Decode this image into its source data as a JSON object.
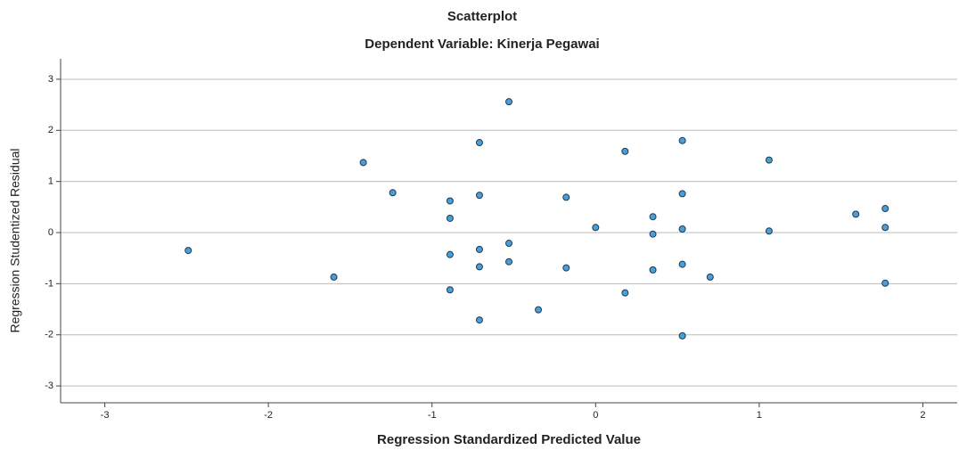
{
  "chart_data": {
    "type": "scatter",
    "title": "Scatterplot",
    "subtitle": "Dependent Variable: Kinerja Pegawai",
    "x_label": "Regression Standardized Predicted Value",
    "y_label": "Regression Studentized Residual",
    "xlim": [
      -3.27,
      2.21
    ],
    "ylim": [
      -3.33,
      3.4
    ],
    "xticks": [
      -3,
      -2,
      -1,
      0,
      1,
      2
    ],
    "yticks": [
      -3,
      -2,
      -1,
      0,
      1,
      2,
      3
    ],
    "grid": true,
    "color": "#4a9fd6",
    "x": [
      -2.49,
      -1.6,
      -1.42,
      -1.24,
      -0.89,
      -0.89,
      -0.89,
      -0.89,
      -0.71,
      -0.71,
      -0.71,
      -0.71,
      -0.71,
      -0.53,
      -0.53,
      -0.53,
      -0.35,
      -0.18,
      -0.18,
      0.0,
      0.18,
      0.18,
      0.35,
      0.35,
      0.35,
      0.53,
      0.53,
      0.53,
      0.53,
      0.53,
      0.7,
      1.06,
      1.06,
      1.59,
      1.77,
      1.77,
      1.77
    ],
    "y": [
      -0.35,
      -0.87,
      1.37,
      0.78,
      0.62,
      0.28,
      -0.43,
      -1.12,
      1.76,
      0.73,
      -0.33,
      -0.67,
      -1.71,
      2.56,
      -0.21,
      -0.57,
      -1.51,
      0.69,
      -0.69,
      0.1,
      1.59,
      -1.18,
      0.31,
      -0.03,
      -0.73,
      1.8,
      0.76,
      0.07,
      -0.62,
      -2.02,
      -0.87,
      1.42,
      0.03,
      0.36,
      0.47,
      0.1,
      -0.99
    ]
  }
}
